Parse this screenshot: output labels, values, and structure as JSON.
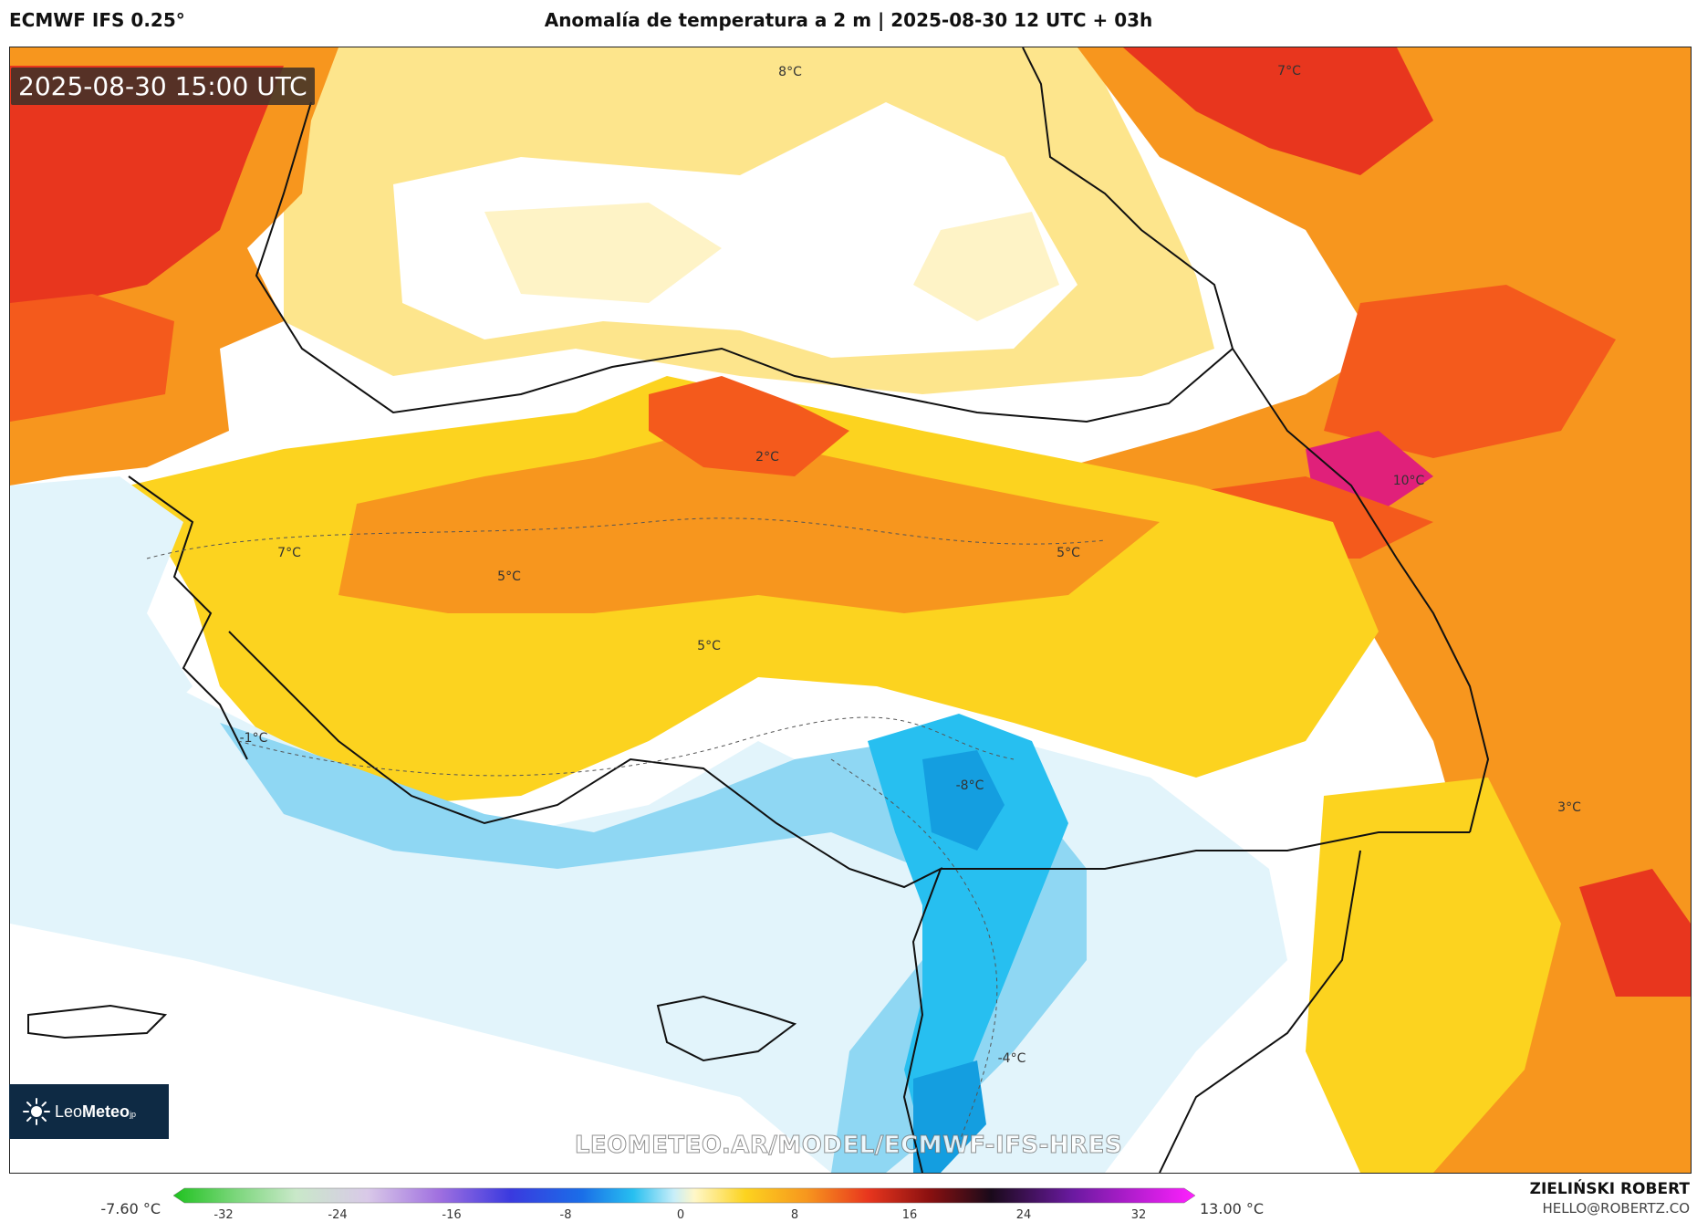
{
  "header": {
    "model": "ECMWF IFS 0.25°",
    "title": "Anomalía de temperatura a 2 m | 2025-08-30 12 UTC + 03h"
  },
  "map": {
    "valid_time": "2025-08-30 15:00 UTC",
    "watermark": "LEOMETEO.AR/MODEL/ECMWF-IFS-HRES",
    "contour_labels": [
      "8°C",
      "7°C",
      "2°C",
      "10°C",
      "7°C",
      "5°C",
      "5°C",
      "5°C",
      "-1°C",
      "-8°C",
      "3°C",
      "-4°C"
    ]
  },
  "logo": {
    "name_light": "Leo",
    "name_bold": "Meteo",
    "suffix": "jp"
  },
  "legend": {
    "min_label": "-7.60 °C",
    "max_label": "13.00 °C",
    "ticks": [
      "-32",
      "-24",
      "-16",
      "-8",
      "0",
      "8",
      "16",
      "24",
      "32"
    ],
    "range": [
      -32,
      32
    ]
  },
  "credit": {
    "name": "ZIELIŃSKI ROBERT",
    "email": "HELLO@ROBERTZ.CO"
  },
  "colors": {
    "deep_red": "#e8361e",
    "red_orange": "#f45a1c",
    "orange": "#f7961e",
    "yellow": "#fcd31f",
    "light_yellow": "#fde58c",
    "pale_yellow": "#fef3c6",
    "light_blue": "#e2f4fb",
    "mid_blue": "#8fd7f3",
    "cyan": "#27bff0",
    "blue": "#149ee0",
    "magenta": "#e0207a"
  }
}
